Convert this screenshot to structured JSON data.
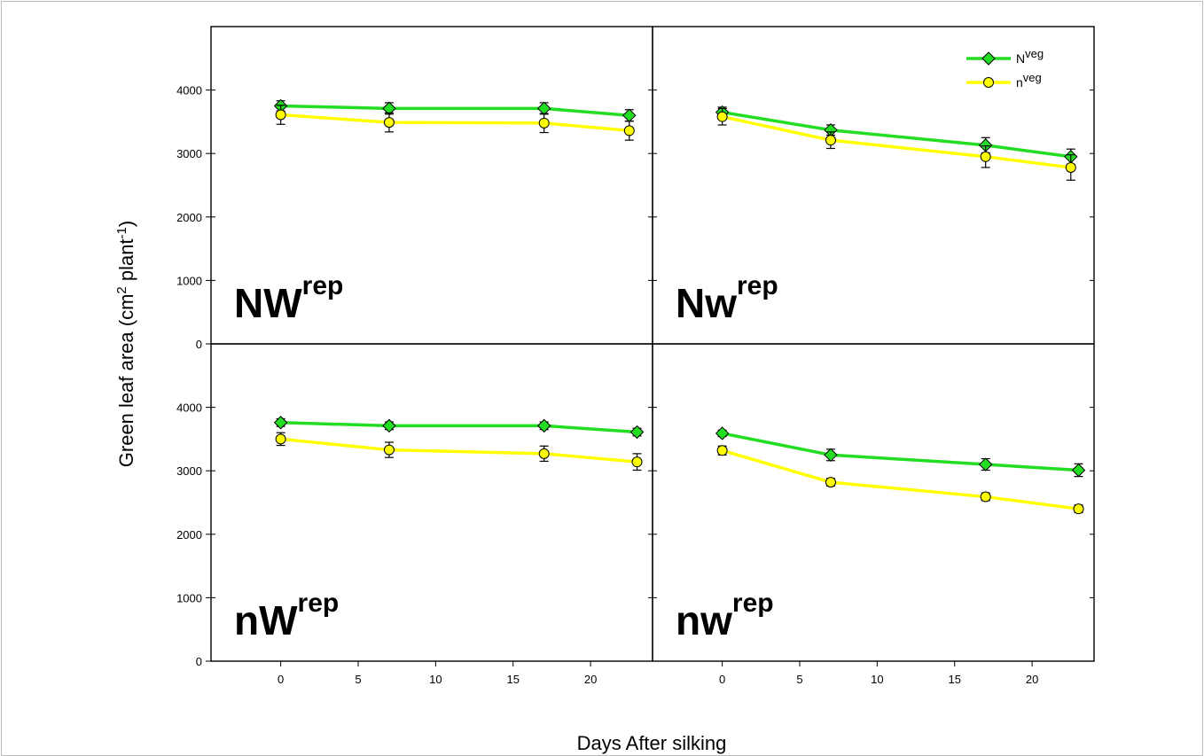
{
  "chart_data": {
    "type": "line",
    "xlabel": "Days After silking",
    "ylabel": {
      "main": "Green leaf area (cm",
      "sup1": "2",
      "mid": " plant",
      "sup2": "-1",
      "end": ")"
    },
    "xlim": [
      -4.5,
      24
    ],
    "ylim": [
      0,
      4000
    ],
    "y_display_max": 5000,
    "xticks": [
      0,
      5,
      10,
      15,
      20
    ],
    "yticks": [
      0,
      1000,
      2000,
      3000,
      4000
    ],
    "grid": false,
    "legend": {
      "placement": "top-right of top-right panel",
      "entries": [
        {
          "base": "N",
          "sup": "veg",
          "color": "#22dd22",
          "marker": "diamond"
        },
        {
          "base": "n",
          "sup": "veg",
          "color": "#ffff00",
          "marker": "circle"
        }
      ]
    },
    "panels": [
      {
        "label": {
          "base": "NW",
          "sup": "rep"
        },
        "series": [
          {
            "name": "Nveg",
            "x": [
              0,
              7,
              17,
              22.5
            ],
            "y": [
              3750,
              3710,
              3710,
              3600
            ],
            "err": [
              80,
              90,
              90,
              90
            ]
          },
          {
            "name": "nveg",
            "x": [
              0,
              7,
              17,
              22.5
            ],
            "y": [
              3610,
              3490,
              3480,
              3360
            ],
            "err": [
              150,
              150,
              150,
              150
            ]
          }
        ]
      },
      {
        "label": {
          "base": "Nw",
          "sup": "rep"
        },
        "series": [
          {
            "name": "Nveg",
            "x": [
              0,
              7,
              17,
              22.5
            ],
            "y": [
              3650,
              3370,
              3130,
              2950
            ],
            "err": [
              80,
              80,
              120,
              120
            ]
          },
          {
            "name": "nveg",
            "x": [
              0,
              7,
              17,
              22.5
            ],
            "y": [
              3580,
              3210,
              2950,
              2780
            ],
            "err": [
              130,
              130,
              170,
              200
            ]
          }
        ]
      },
      {
        "label": {
          "base": "nW",
          "sup": "rep"
        },
        "series": [
          {
            "name": "Nveg",
            "x": [
              0,
              7,
              17,
              23
            ],
            "y": [
              3760,
              3710,
              3710,
              3610
            ],
            "err": [
              60,
              60,
              60,
              60
            ]
          },
          {
            "name": "nveg",
            "x": [
              0,
              7,
              17,
              23
            ],
            "y": [
              3500,
              3330,
              3270,
              3140
            ],
            "err": [
              100,
              120,
              120,
              130
            ]
          }
        ]
      },
      {
        "label": {
          "base": "nw",
          "sup": "rep"
        },
        "series": [
          {
            "name": "Nveg",
            "x": [
              0,
              7,
              17,
              23
            ],
            "y": [
              3590,
              3250,
              3100,
              3010
            ],
            "err": [
              50,
              90,
              90,
              100
            ]
          },
          {
            "name": "nveg",
            "x": [
              0,
              7,
              17,
              23
            ],
            "y": [
              3320,
              2820,
              2590,
              2400
            ],
            "err": [
              70,
              60,
              60,
              60
            ]
          }
        ]
      }
    ]
  }
}
